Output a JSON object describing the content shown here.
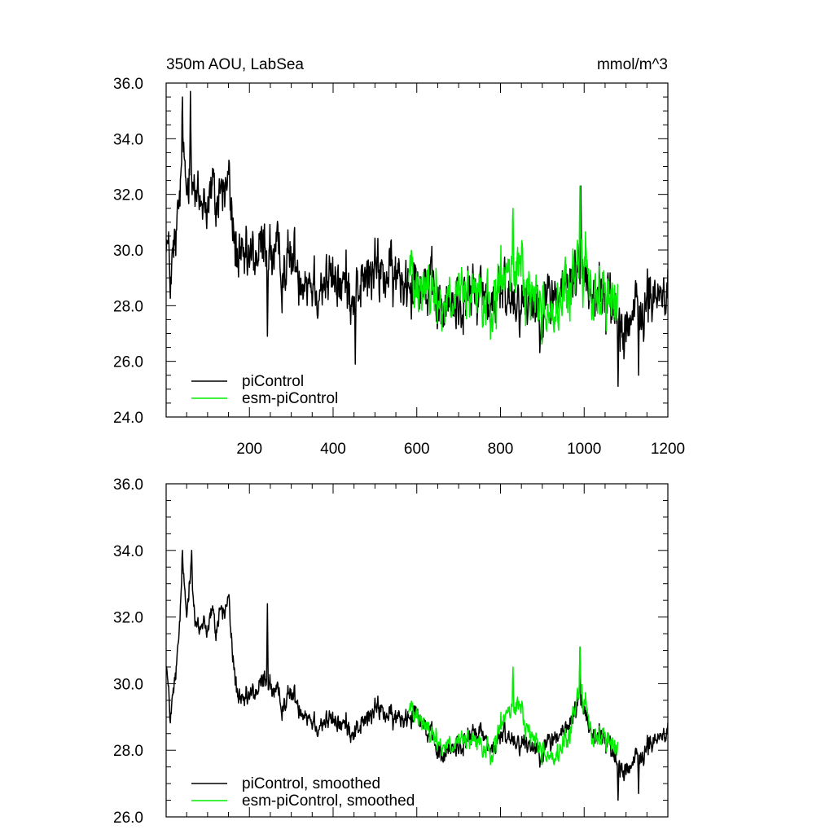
{
  "figure": {
    "title_left": "350m AOU, LabSea",
    "title_right": "mmol/m^3"
  },
  "chart_data": [
    {
      "type": "line",
      "title": "350m AOU, LabSea",
      "units": "mmol/m^3",
      "xlim": [
        1,
        1200
      ],
      "ylim": [
        24,
        36
      ],
      "x_ticks": [
        200,
        400,
        600,
        800,
        1000,
        1200
      ],
      "y_ticks": [
        24,
        26,
        28,
        30,
        32,
        34,
        36
      ],
      "y_tick_labels": [
        "24.0",
        "26.0",
        "28.0",
        "30.0",
        "32.0",
        "34.0",
        "36.0"
      ],
      "x_tick_labels": [
        "200",
        "400",
        "600",
        "800",
        "1000",
        "1200"
      ],
      "legend_position": "bottom-left",
      "series": [
        {
          "name": "piControl",
          "color": "#000000",
          "x_start": 1,
          "x_end": 1200,
          "anchors_x": [
            1,
            10,
            20,
            30,
            40,
            50,
            60,
            70,
            80,
            90,
            100,
            110,
            120,
            130,
            140,
            150,
            160,
            170,
            180,
            200,
            220,
            240,
            260,
            280,
            300,
            330,
            360,
            390,
            420,
            450,
            480,
            510,
            540,
            570,
            600,
            630,
            660,
            690,
            720,
            750,
            780,
            810,
            840,
            870,
            900,
            930,
            960,
            990,
            1020,
            1050,
            1080,
            1110,
            1140,
            1170,
            1200
          ],
          "anchors_y": [
            30.8,
            29.0,
            29.8,
            31.0,
            33.5,
            32.0,
            33.8,
            31.8,
            31.5,
            32.0,
            31.6,
            32.2,
            31.5,
            32.3,
            32.1,
            32.6,
            30.8,
            29.8,
            29.3,
            29.6,
            29.8,
            30.2,
            29.7,
            29.4,
            29.7,
            29.2,
            28.8,
            28.9,
            28.8,
            28.6,
            28.9,
            29.3,
            28.9,
            29.0,
            29.3,
            28.4,
            27.8,
            28.1,
            28.3,
            28.6,
            28.0,
            28.5,
            28.3,
            28.2,
            28.0,
            28.4,
            28.6,
            29.6,
            28.5,
            28.4,
            27.6,
            27.5,
            27.9,
            28.3,
            28.6
          ],
          "noise_amp": 0.95,
          "spike_x": [
            40,
            59,
            243,
            453,
            992,
            1081,
            1130
          ],
          "spike_y": [
            35.5,
            35.7,
            26.9,
            25.9,
            32.3,
            25.1,
            25.5
          ]
        },
        {
          "name": "esm-piControl",
          "color": "#00ee00",
          "x_start": 580,
          "x_end": 1080,
          "anchors_x": [
            580,
            600,
            630,
            660,
            690,
            720,
            750,
            780,
            810,
            840,
            870,
            900,
            930,
            960,
            990,
            1020,
            1050,
            1080
          ],
          "anchors_y": [
            29.2,
            29.3,
            28.5,
            28.2,
            28.1,
            28.3,
            28.1,
            27.9,
            29.0,
            29.4,
            28.5,
            28.0,
            27.8,
            28.2,
            30.0,
            28.4,
            28.4,
            28.0
          ],
          "noise_amp": 0.95,
          "spike_x": [
            830,
            990
          ],
          "spike_y": [
            31.5,
            32.3
          ]
        }
      ]
    },
    {
      "type": "line",
      "xlim": [
        1,
        1200
      ],
      "ylim": [
        26,
        36
      ],
      "x_ticks": [
        200,
        400,
        600,
        800,
        1000,
        1200
      ],
      "y_ticks": [
        26,
        28,
        30,
        32,
        34,
        36
      ],
      "y_tick_labels": [
        "26.0",
        "28.0",
        "30.0",
        "32.0",
        "34.0",
        "36.0"
      ],
      "legend_position": "bottom-left",
      "series": [
        {
          "name": "piControl, smoothed",
          "color": "#000000",
          "x_start": 1,
          "x_end": 1200,
          "anchors_x": [
            1,
            10,
            20,
            30,
            40,
            50,
            60,
            70,
            80,
            90,
            100,
            110,
            120,
            130,
            140,
            150,
            160,
            170,
            180,
            200,
            220,
            240,
            260,
            280,
            300,
            330,
            360,
            390,
            420,
            450,
            480,
            510,
            540,
            570,
            600,
            630,
            660,
            690,
            720,
            750,
            780,
            810,
            840,
            870,
            900,
            930,
            960,
            990,
            1020,
            1050,
            1080,
            1110,
            1140,
            1170,
            1200
          ],
          "anchors_y": [
            30.8,
            29.0,
            29.8,
            31.0,
            33.5,
            32.0,
            33.8,
            31.8,
            31.5,
            32.0,
            31.6,
            32.2,
            31.5,
            32.3,
            32.1,
            32.6,
            30.8,
            29.8,
            29.3,
            29.6,
            29.8,
            30.2,
            29.7,
            29.4,
            29.7,
            29.2,
            28.8,
            28.9,
            28.8,
            28.6,
            28.9,
            29.3,
            28.9,
            29.0,
            29.3,
            28.4,
            27.8,
            28.1,
            28.3,
            28.6,
            28.0,
            28.5,
            28.3,
            28.2,
            28.0,
            28.4,
            28.6,
            29.6,
            28.5,
            28.4,
            27.6,
            27.5,
            27.9,
            28.3,
            28.6
          ],
          "noise_amp": 0.3,
          "spike_x": [
            40,
            62,
            243,
            990,
            1081,
            1130
          ],
          "spike_y": [
            34.0,
            34.0,
            32.4,
            31.1,
            26.5,
            26.7
          ]
        },
        {
          "name": "esm-piControl, smoothed",
          "color": "#00ee00",
          "x_start": 580,
          "x_end": 1080,
          "anchors_x": [
            580,
            600,
            630,
            660,
            690,
            720,
            750,
            780,
            810,
            840,
            870,
            900,
            930,
            960,
            990,
            1020,
            1050,
            1080
          ],
          "anchors_y": [
            29.2,
            29.3,
            28.5,
            28.2,
            28.1,
            28.3,
            28.1,
            27.9,
            29.0,
            29.4,
            28.5,
            28.0,
            27.8,
            28.2,
            30.0,
            28.4,
            28.4,
            28.0
          ],
          "noise_amp": 0.3,
          "spike_x": [
            830,
            990
          ],
          "spike_y": [
            30.5,
            31.1
          ]
        }
      ]
    }
  ]
}
